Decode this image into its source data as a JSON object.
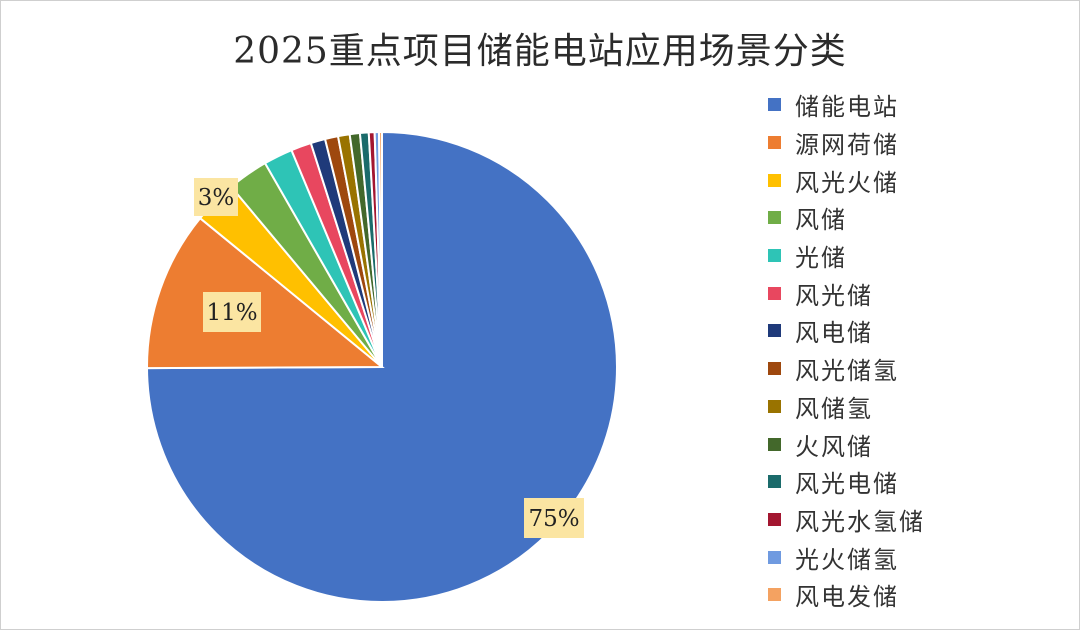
{
  "chart_data": {
    "type": "pie",
    "title": "2025重点项目储能电站应用场景分类",
    "start_angle_deg": 0,
    "direction": "clockwise",
    "slices": [
      {
        "name": "储能电站",
        "value": 75,
        "color": "#4472C4",
        "label": "75%"
      },
      {
        "name": "源网荷储",
        "value": 11,
        "color": "#ED7D31",
        "label": "11%"
      },
      {
        "name": "风光火储",
        "value": 3,
        "color": "#FFC000",
        "label": "3%"
      },
      {
        "name": "风储",
        "value": 2.8,
        "color": "#70AD47",
        "label": ""
      },
      {
        "name": "光储",
        "value": 2,
        "color": "#2EC4B6",
        "label": ""
      },
      {
        "name": "风光储",
        "value": 1.4,
        "color": "#E8475F",
        "label": ""
      },
      {
        "name": "风电储",
        "value": 1,
        "color": "#1F3A7A",
        "label": ""
      },
      {
        "name": "风光储氢",
        "value": 0.9,
        "color": "#9E480E",
        "label": ""
      },
      {
        "name": "风储氢",
        "value": 0.8,
        "color": "#997300",
        "label": ""
      },
      {
        "name": "火风储",
        "value": 0.7,
        "color": "#43682B",
        "label": ""
      },
      {
        "name": "风光电储",
        "value": 0.6,
        "color": "#1B6B6B",
        "label": ""
      },
      {
        "name": "风光水氢储",
        "value": 0.4,
        "color": "#A31630",
        "label": ""
      },
      {
        "name": "光火储氢",
        "value": 0.3,
        "color": "#6F9AE0",
        "label": ""
      },
      {
        "name": "风电发储",
        "value": 0.2,
        "color": "#F4A261",
        "label": ""
      }
    ],
    "legend_position": "right"
  }
}
